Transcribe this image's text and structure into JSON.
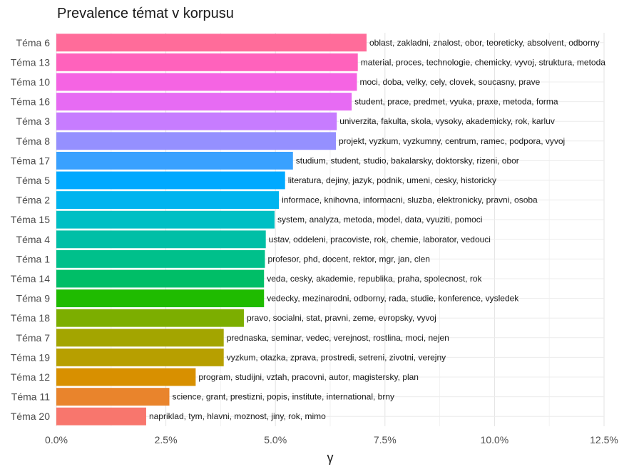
{
  "chart_data": {
    "type": "bar",
    "orientation": "horizontal",
    "title": "Prevalence témat v korpusu",
    "xlabel": "γ",
    "ylabel": "",
    "xlim": [
      0,
      0.125
    ],
    "x_ticks": [
      0,
      0.025,
      0.05,
      0.075,
      0.1,
      0.125
    ],
    "x_tick_labels": [
      "0.0%",
      "2.5%",
      "5.0%",
      "7.5%",
      "10.0%",
      "12.5%"
    ],
    "grid": true,
    "legend": "none",
    "bars": [
      {
        "category": "Téma 6",
        "value": 0.0708,
        "label": "oblast, zakladni, znalost, obor, teoreticky, absolvent, odborny",
        "color": "#FF6C9A"
      },
      {
        "category": "Téma 13",
        "value": 0.0688,
        "label": "material, proces, technologie, chemicky, vyvoj, struktura, metoda",
        "color": "#FF62BC"
      },
      {
        "category": "Téma 10",
        "value": 0.0686,
        "label": "moci, doba, velky, cely, clovek, soucasny, prave",
        "color": "#F564E3"
      },
      {
        "category": "Téma 16",
        "value": 0.0674,
        "label": "student, prace, predmet, vyuka, praxe, metoda, forma",
        "color": "#E76BF3"
      },
      {
        "category": "Téma 3",
        "value": 0.064,
        "label": "univerzita, fakulta, skola, vysoky, akademicky, rok, karluv",
        "color": "#C77CFF"
      },
      {
        "category": "Téma 8",
        "value": 0.0638,
        "label": "projekt, vyzkum, vyzkumny, centrum, ramec, podpora, vyvoj",
        "color": "#9590FF"
      },
      {
        "category": "Téma 17",
        "value": 0.054,
        "label": "studium, student, studio, bakalarsky, doktorsky, rizeni, obor",
        "color": "#39A1FF"
      },
      {
        "category": "Téma 5",
        "value": 0.0522,
        "label": "literatura, dejiny, jazyk, podnik, umeni, cesky, historicky",
        "color": "#00A9FF"
      },
      {
        "category": "Téma 2",
        "value": 0.0508,
        "label": "informace, knihovna, informacni, sluzba, elektronicky, pravni, osoba",
        "color": "#00B4EF"
      },
      {
        "category": "Téma 15",
        "value": 0.0498,
        "label": "system, analyza, metoda, model, data, vyuziti, pomoci",
        "color": "#00BFC4"
      },
      {
        "category": "Téma 4",
        "value": 0.0478,
        "label": "ustav, oddeleni, pracoviste, rok, chemie, laborator, vedouci",
        "color": "#00BFA6"
      },
      {
        "category": "Téma 1",
        "value": 0.0476,
        "label": "profesor, phd, docent, rektor, mgr, jan, clen",
        "color": "#00C08B"
      },
      {
        "category": "Téma 14",
        "value": 0.0474,
        "label": "veda, cesky, akademie, republika, praha, spolecnost, rok",
        "color": "#00BE67"
      },
      {
        "category": "Téma 9",
        "value": 0.0474,
        "label": "vedecky, mezinarodni, odborny, rada, studie, konference, vysledek",
        "color": "#1FBB00"
      },
      {
        "category": "Téma 18",
        "value": 0.0428,
        "label": "pravo, socialni, stat, pravni, zeme, evropsky, vyvoj",
        "color": "#7CAE00"
      },
      {
        "category": "Téma 7",
        "value": 0.0382,
        "label": "prednaska, seminar, vedec, verejnost, rostlina, moci, nejen",
        "color": "#A3A500"
      },
      {
        "category": "Téma 19",
        "value": 0.0382,
        "label": "vyzkum, otazka, zprava, prostredi, setreni, zivotni, verejny",
        "color": "#B79F00"
      },
      {
        "category": "Téma 12",
        "value": 0.0318,
        "label": "program, studijni, vztah, pracovni, autor, magistersky, plan",
        "color": "#D89000"
      },
      {
        "category": "Téma 11",
        "value": 0.0258,
        "label": "science, grant, prestizni, popis, institute, international, brny",
        "color": "#E9842C"
      },
      {
        "category": "Téma 20",
        "value": 0.0205,
        "label": "napriklad, tym, hlavni, moznost, jiny, rok, mimo",
        "color": "#F8766D"
      }
    ]
  }
}
